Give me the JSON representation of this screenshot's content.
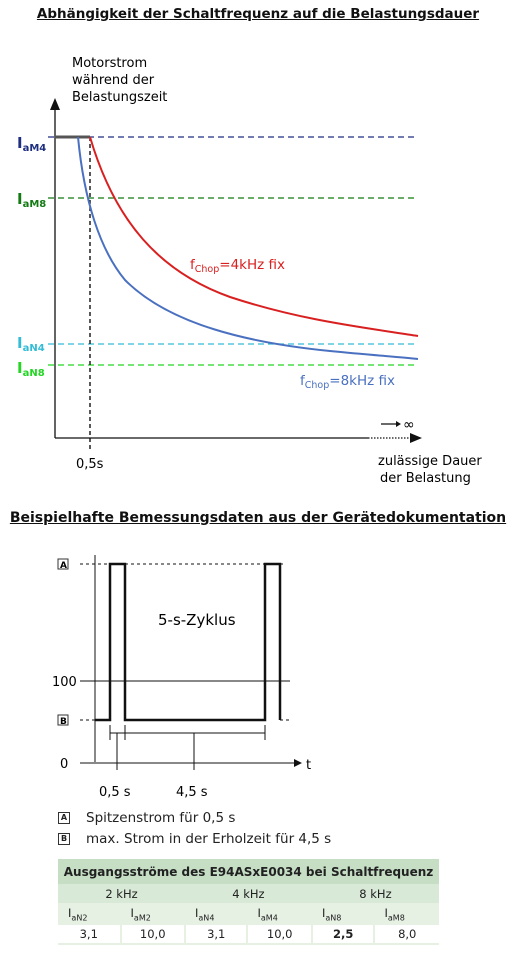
{
  "top_diagram": {
    "title": "Abhängigkeit der Schaltfrequenz auf die Belastungsdauer",
    "y_axis_label": [
      "Motorstrom",
      "während der",
      "Belastungszeit"
    ],
    "x_axis_label": [
      "zulässige Dauer",
      "der Belastung"
    ],
    "infinity_symbol": "∞",
    "time_marker": "0,5s",
    "levels": [
      {
        "main": "I",
        "sub": "aM4",
        "color": "#1f2f80"
      },
      {
        "main": "I",
        "sub": "aM8",
        "color": "#137a13"
      },
      {
        "main": "I",
        "sub": "aN4",
        "color": "#33bcd6"
      },
      {
        "main": "I",
        "sub": "aN8",
        "color": "#22d622"
      }
    ],
    "curves": [
      {
        "prefix": "f",
        "sub": "Chop",
        "suffix": "=4kHz fix",
        "color": "#d92020"
      },
      {
        "prefix": "f",
        "sub": "Chop",
        "suffix": "=8kHz fix",
        "color": "#4a70c0"
      }
    ]
  },
  "bottom_diagram": {
    "title": "Beispielhafte Bemessungsdaten aus der Gerätedokumentation",
    "y_markers": {
      "A": "A",
      "hundred": "100",
      "B": "B",
      "zero": "0"
    },
    "cycle_label": "5-s-Zyklus",
    "x_labels": {
      "half_s": "0,5 s",
      "four_half_s": "4,5 s",
      "t": "t"
    },
    "legend": [
      {
        "marker": "A",
        "text": "Spitzenstrom für 0,5 s"
      },
      {
        "marker": "B",
        "text": "max. Strom in der Erholzeit für 4,5 s"
      }
    ]
  },
  "table": {
    "title": "Ausgangsströme des E94ASxE0034 bei Schaltfrequenz",
    "frequencies": [
      "2 kHz",
      "4 kHz",
      "8 kHz"
    ],
    "columns": [
      {
        "main": "I",
        "sub": "aN2"
      },
      {
        "main": "I",
        "sub": "aM2"
      },
      {
        "main": "I",
        "sub": "aN4"
      },
      {
        "main": "I",
        "sub": "aM4"
      },
      {
        "main": "I",
        "sub": "aN8"
      },
      {
        "main": "I",
        "sub": "aM8"
      }
    ],
    "values": [
      "3,1",
      "10,0",
      "3,1",
      "10,0",
      "2,5",
      "8,0"
    ]
  }
}
